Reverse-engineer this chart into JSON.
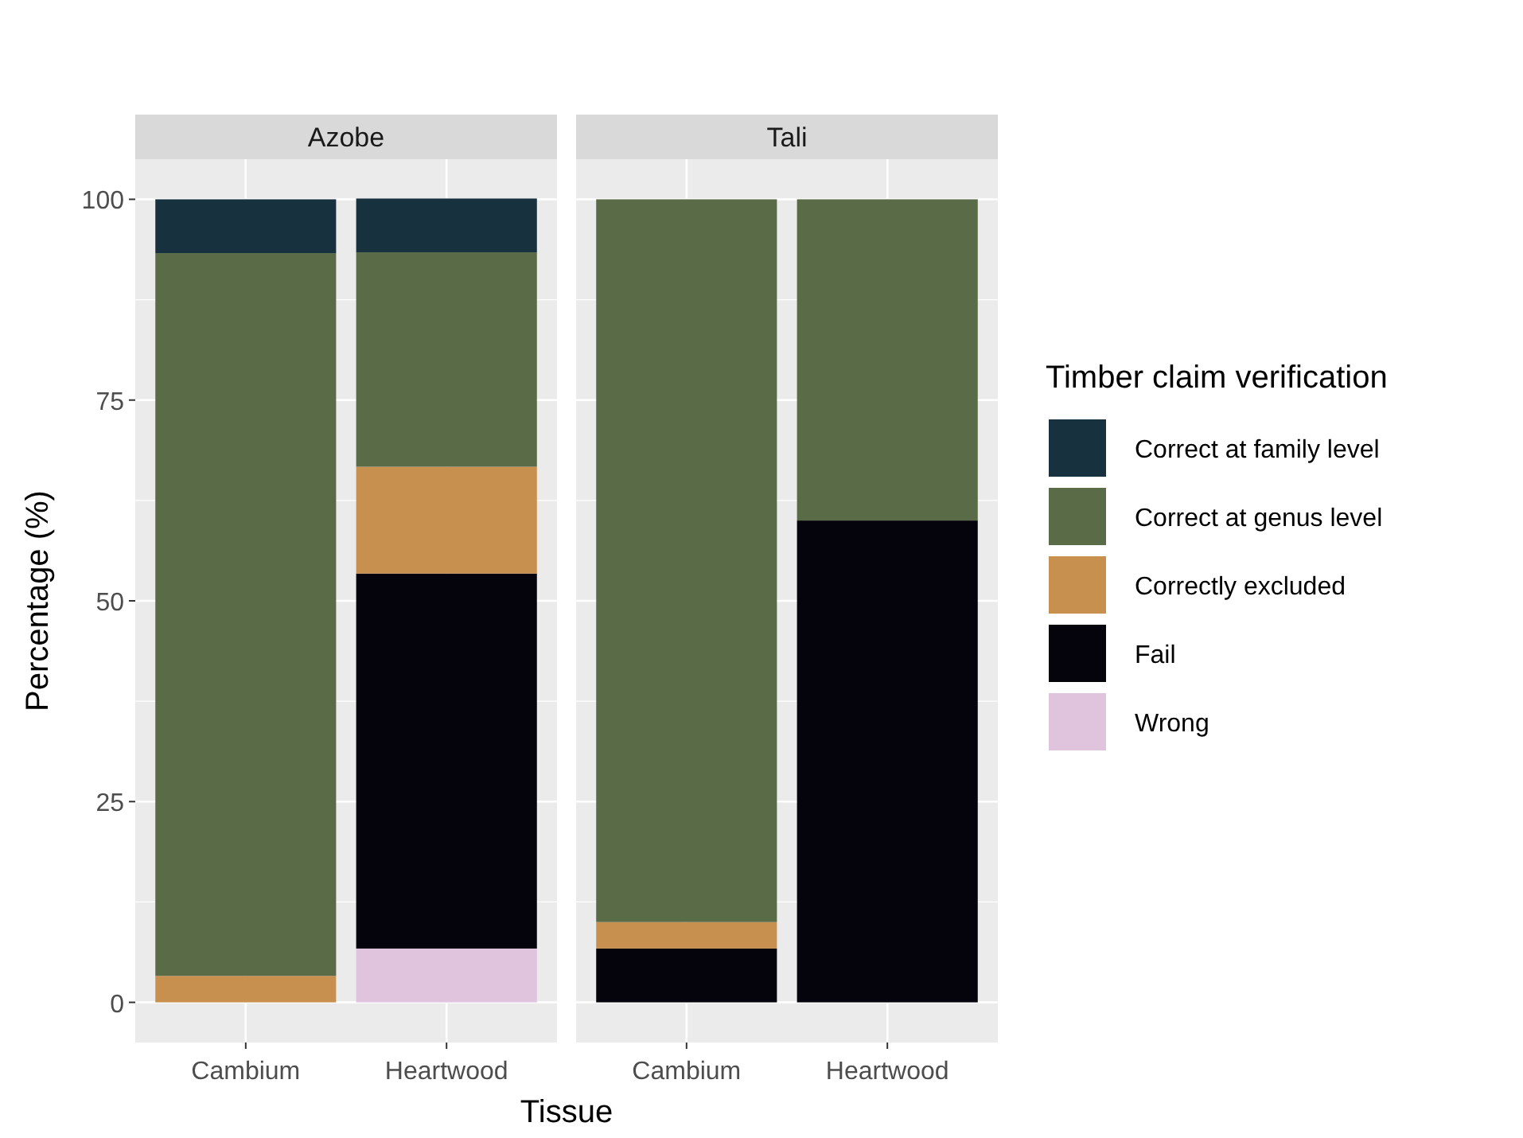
{
  "chart_data": [
    {
      "type": "bar",
      "title": "Azobe",
      "xlabel": "Tissue",
      "ylabel": "Percentage (%)",
      "legend_title": "Timber claim verification",
      "categories": [
        "Cambium",
        "Heartwood"
      ],
      "stacked": true,
      "ylim": [
        -5,
        105
      ],
      "yticks": [
        0,
        25,
        50,
        75,
        100
      ],
      "grid": true,
      "legend": "right",
      "series": [
        {
          "name": "Wrong",
          "color": "#e0c4de",
          "values": [
            null,
            6.7
          ]
        },
        {
          "name": "Fail",
          "color": "#05040d",
          "values": [
            null,
            46.7
          ]
        },
        {
          "name": "Correctly excluded",
          "color": "#c8904f",
          "values": [
            3.3,
            13.3
          ]
        },
        {
          "name": "Correct at genus level",
          "color": "#5a6b48",
          "values": [
            90,
            26.7
          ]
        },
        {
          "name": "Correct at family level",
          "color": "#17313f",
          "values": [
            6.7,
            6.7
          ]
        }
      ]
    },
    {
      "type": "bar",
      "title": "Tali",
      "categories": [
        "Cambium",
        "Heartwood"
      ],
      "stacked": true,
      "ylim": [
        -5,
        105
      ],
      "yticks": [
        0,
        25,
        50,
        75,
        100
      ],
      "grid": true,
      "tick_labels": "x",
      "series": [
        {
          "color": "#05040d",
          "values": [
            6.7,
            60
          ]
        },
        {
          "color": "#c8904f",
          "values": [
            3.3,
            null
          ]
        },
        {
          "color": "#5a6b48",
          "values": [
            90,
            40
          ]
        }
      ]
    }
  ]
}
